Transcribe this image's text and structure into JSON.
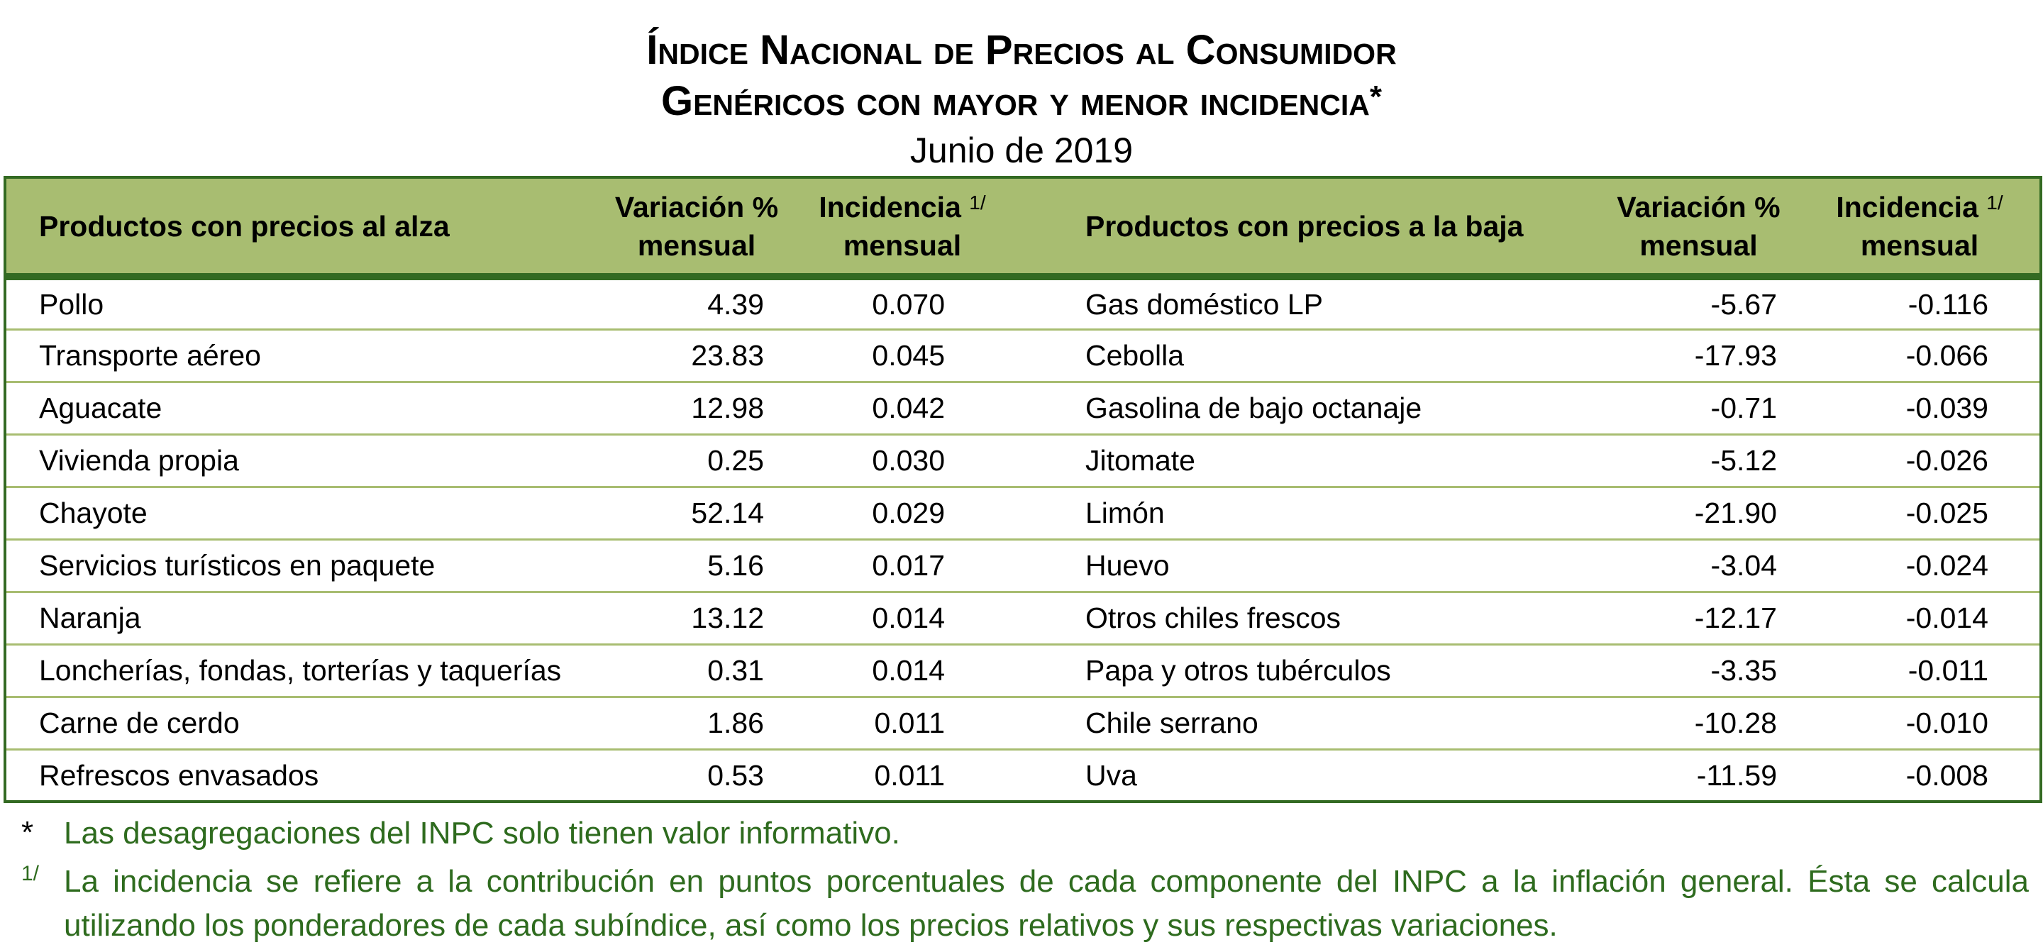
{
  "title": {
    "line1": "Índice Nacional de Precios al Consumidor",
    "line2": "Genéricos con mayor y menor incidencia",
    "line2_mark": "*",
    "line3": "Junio de 2019"
  },
  "colors": {
    "header_bg": "#a8bd71",
    "border": "#336a22",
    "footnote_text": "#2e6b1e"
  },
  "headers": {
    "up_products": "Productos con precios al alza",
    "variation_line1": "Variación %",
    "variation_line2": "mensual",
    "incidence_line1": "Incidencia",
    "incidence_sup": "1/",
    "incidence_line2": "mensual",
    "down_products": "Productos con precios a la baja"
  },
  "rows": [
    {
      "up": "Pollo",
      "up_var": "4.39",
      "up_inc": "0.070",
      "down": "Gas doméstico LP",
      "down_var": "-5.67",
      "down_inc": "-0.116"
    },
    {
      "up": "Transporte aéreo",
      "up_var": "23.83",
      "up_inc": "0.045",
      "down": "Cebolla",
      "down_var": "-17.93",
      "down_inc": "-0.066"
    },
    {
      "up": "Aguacate",
      "up_var": "12.98",
      "up_inc": "0.042",
      "down": "Gasolina de bajo octanaje",
      "down_var": "-0.71",
      "down_inc": "-0.039"
    },
    {
      "up": "Vivienda propia",
      "up_var": "0.25",
      "up_inc": "0.030",
      "down": "Jitomate",
      "down_var": "-5.12",
      "down_inc": "-0.026"
    },
    {
      "up": "Chayote",
      "up_var": "52.14",
      "up_inc": "0.029",
      "down": "Limón",
      "down_var": "-21.90",
      "down_inc": "-0.025"
    },
    {
      "up": "Servicios turísticos en paquete",
      "up_var": "5.16",
      "up_inc": "0.017",
      "down": "Huevo",
      "down_var": "-3.04",
      "down_inc": "-0.024"
    },
    {
      "up": "Naranja",
      "up_var": "13.12",
      "up_inc": "0.014",
      "down": "Otros chiles frescos",
      "down_var": "-12.17",
      "down_inc": "-0.014"
    },
    {
      "up": "Loncherías, fondas, torterías y taquerías",
      "up_var": "0.31",
      "up_inc": "0.014",
      "down": "Papa y otros tubérculos",
      "down_var": "-3.35",
      "down_inc": "-0.011"
    },
    {
      "up": "Carne de cerdo",
      "up_var": "1.86",
      "up_inc": "0.011",
      "down": "Chile serrano",
      "down_var": "-10.28",
      "down_inc": "-0.010"
    },
    {
      "up": "Refrescos envasados",
      "up_var": "0.53",
      "up_inc": "0.011",
      "down": "Uva",
      "down_var": "-11.59",
      "down_inc": "-0.008"
    }
  ],
  "footnotes": [
    {
      "mark": "*",
      "text": "Las desagregaciones del INPC solo tienen valor informativo."
    },
    {
      "mark": "1/",
      "text": "La incidencia se refiere a la contribución en puntos porcentuales de cada componente del INPC a la inflación general. Ésta se calcula utilizando los ponderadores de cada subíndice, así como los precios relativos y sus respectivas variaciones."
    }
  ]
}
